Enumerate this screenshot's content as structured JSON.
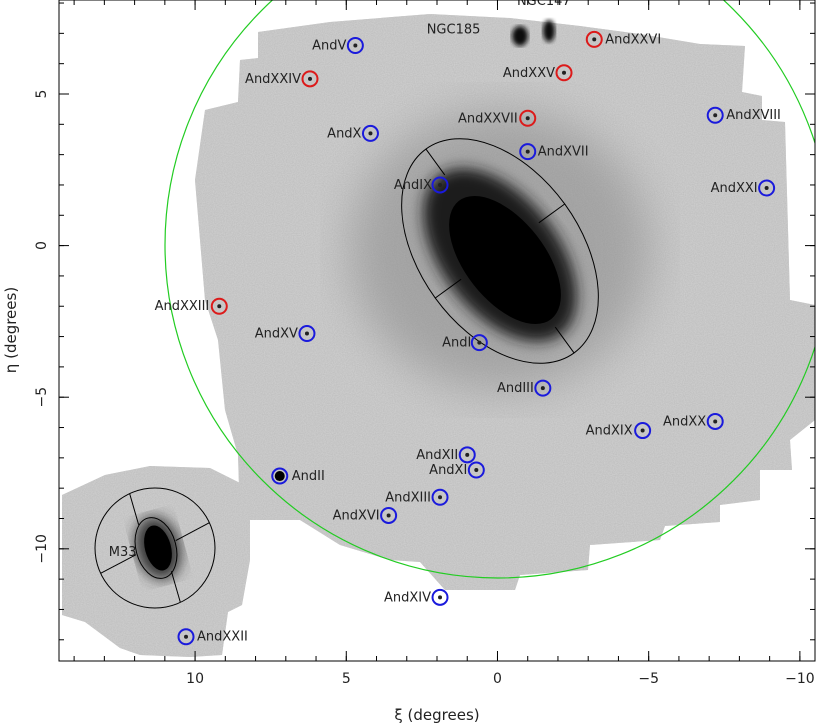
{
  "chart_data": {
    "type": "scatter",
    "title": "",
    "xlabel": "ξ (degrees)",
    "ylabel": "η (degrees)",
    "xlim": [
      14.5,
      -10.5
    ],
    "ylim": [
      -13.7,
      8.1
    ],
    "x_ticks": [
      10,
      5,
      0,
      -5,
      -10
    ],
    "y_ticks": [
      5,
      0,
      -5,
      -10
    ],
    "grid": false,
    "colors": {
      "blue_marker": "#1a1adc",
      "red_marker": "#dc1a1a",
      "boundary_circle": "#22cc22",
      "ellipse": "#000000",
      "survey_field": "#bdbdbd"
    },
    "galaxies": [
      {
        "name": "NGC185",
        "x": 0.3,
        "y": 7.2
      },
      {
        "name": "NGC147",
        "x": -1.4,
        "y": 7.4
      },
      {
        "name": "M33",
        "x": 11.4,
        "y": -10.1
      }
    ],
    "satellites_blue": [
      {
        "label": "AndV",
        "x": 4.7,
        "y": 6.6
      },
      {
        "label": "AndX",
        "x": 4.2,
        "y": 3.7
      },
      {
        "label": "AndIX",
        "x": 1.9,
        "y": 2.0
      },
      {
        "label": "AndXVII",
        "x": -1.0,
        "y": 3.1
      },
      {
        "label": "AndXVIII",
        "x": -7.2,
        "y": 4.3
      },
      {
        "label": "AndXXI",
        "x": -8.9,
        "y": 1.9
      },
      {
        "label": "AndXV",
        "x": 6.3,
        "y": -2.9
      },
      {
        "label": "AndI",
        "x": 0.6,
        "y": -3.2
      },
      {
        "label": "AndIII",
        "x": -1.5,
        "y": -4.7
      },
      {
        "label": "AndXIX",
        "x": -4.8,
        "y": -6.1
      },
      {
        "label": "AndXX",
        "x": -7.2,
        "y": -5.8
      },
      {
        "label": "AndXII",
        "x": 1.0,
        "y": -6.9
      },
      {
        "label": "AndXI",
        "x": 0.7,
        "y": -7.4
      },
      {
        "label": "AndII",
        "x": 7.2,
        "y": -7.6
      },
      {
        "label": "AndXIII",
        "x": 1.9,
        "y": -8.3
      },
      {
        "label": "AndXVI",
        "x": 3.6,
        "y": -8.9
      },
      {
        "label": "AndXIV",
        "x": 1.9,
        "y": -11.6
      },
      {
        "label": "AndXXII",
        "x": 10.3,
        "y": -12.9
      }
    ],
    "satellites_red": [
      {
        "label": "AndXXVI",
        "x": -3.2,
        "y": 6.8
      },
      {
        "label": "AndXXIV",
        "x": 6.2,
        "y": 5.5
      },
      {
        "label": "AndXXV",
        "x": -2.2,
        "y": 5.7
      },
      {
        "label": "AndXXVII",
        "x": -1.0,
        "y": 4.2
      },
      {
        "label": "AndXXIII",
        "x": 9.2,
        "y": -2.0
      }
    ]
  }
}
